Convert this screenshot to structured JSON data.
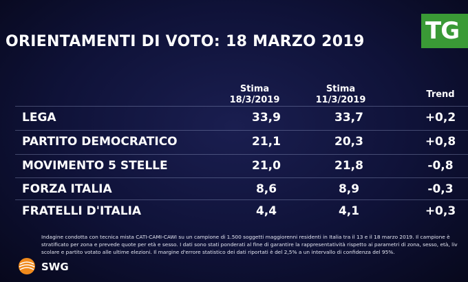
{
  "header": {
    "title": "ORIENTAMENTI DI VOTO: 18 MARZO 2019",
    "logo": "TG"
  },
  "table": {
    "columns": [
      {
        "label": "Stima",
        "date": "18/3/2019"
      },
      {
        "label": "Stima",
        "date": "11/3/2019"
      },
      {
        "label": "Trend"
      }
    ],
    "rows": [
      {
        "party": "LEGA",
        "current": "33,9",
        "previous": "33,7",
        "trend": "+0,2"
      },
      {
        "party": "PARTITO DEMOCRATICO",
        "current": "21,1",
        "previous": "20,3",
        "trend": "+0,8"
      },
      {
        "party": "MOVIMENTO 5 STELLE",
        "current": "21,0",
        "previous": "21,8",
        "trend": "-0,8"
      },
      {
        "party": "FORZA ITALIA",
        "current": "8,6",
        "previous": "8,9",
        "trend": "-0,3"
      },
      {
        "party": "FRATELLI D'ITALIA",
        "current": "4,4",
        "previous": "4,1",
        "trend": "+0,3"
      }
    ]
  },
  "footnote": {
    "line1": "Indagine condotta con tecnica mista CATI-CAMI-CAWI su un campione di 1.500 soggetti maggiorenni residenti in Italia tra il 13 e il 18 marzo 2019. Il campione è",
    "line2": "stratificato per zona e prevede quote per età e sesso. I dati sono stati ponderati al fine di garantire la rappresentatività rispetto ai parametri di zona, sesso, età, liv",
    "line3": "scolare e partito votato alle ultime elezioni. Il margine d'errore statistico dei dati riportati è del 2,5% a un intervallo di confidenza del 95%."
  },
  "brand": {
    "name": "SWG",
    "icon": "swg-globe-icon",
    "tg_color": "#3a9a36"
  }
}
